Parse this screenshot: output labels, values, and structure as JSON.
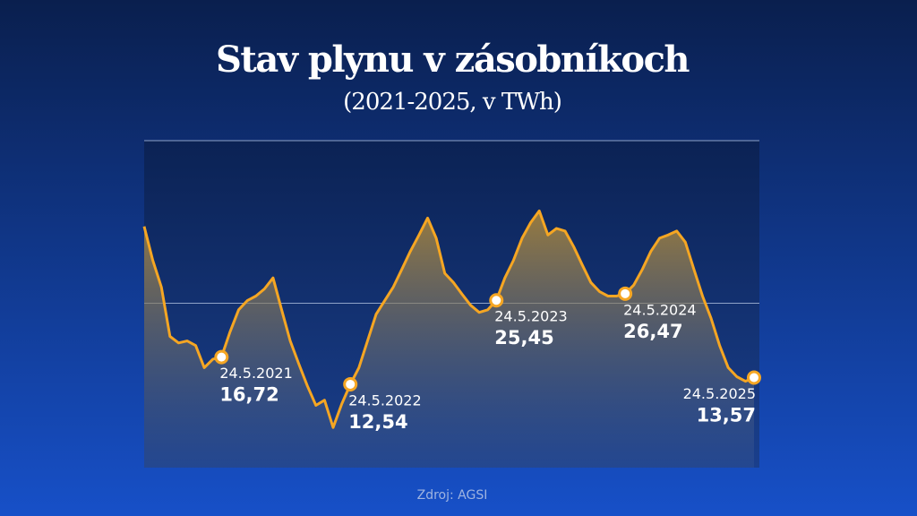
{
  "chart_data": {
    "type": "line",
    "title": "Stav plynu v zásobníkoch",
    "subtitle": "(2021-2025, v TWh)",
    "source": "Zdroj: AGSI",
    "ylim": [
      0,
      50
    ],
    "gridlines": [
      25,
      50
    ],
    "color": "#f5a623",
    "series": [
      {
        "values": [
          36.8,
          31.6,
          27.5,
          19.9,
          18.9,
          19.2,
          18.5,
          15.1,
          16.4,
          16.72,
          20.6,
          24.0,
          25.4,
          26.1,
          27.2,
          28.9,
          24.0,
          19.2,
          15.7,
          12.3,
          9.3,
          10.1,
          5.9,
          9.5,
          12.54,
          15.1,
          19.2,
          23.3,
          25.4,
          27.5,
          30.2,
          33.0,
          35.5,
          38.1,
          35.0,
          29.6,
          28.2,
          26.4,
          24.7,
          23.6,
          24.0,
          25.45,
          28.9,
          31.6,
          35.0,
          37.4,
          39.2,
          35.5,
          36.5,
          36.1,
          33.7,
          30.9,
          28.2,
          26.8,
          26.1,
          26.1,
          26.47,
          27.8,
          30.2,
          33.0,
          35.0,
          35.5,
          36.1,
          34.4,
          30.2,
          26.1,
          22.7,
          18.5,
          15.1,
          13.7,
          13.0,
          13.57
        ]
      }
    ],
    "annotations": [
      {
        "date": "24.5.2021",
        "value": 16.72,
        "value_label": "16,72"
      },
      {
        "date": "24.5.2022",
        "value": 12.54,
        "value_label": "12,54"
      },
      {
        "date": "24.5.2023",
        "value": 25.45,
        "value_label": "25,45"
      },
      {
        "date": "24.5.2024",
        "value": 26.47,
        "value_label": "26,47"
      },
      {
        "date": "24.5.2025",
        "value": 13.57,
        "value_label": "13,57"
      }
    ]
  }
}
